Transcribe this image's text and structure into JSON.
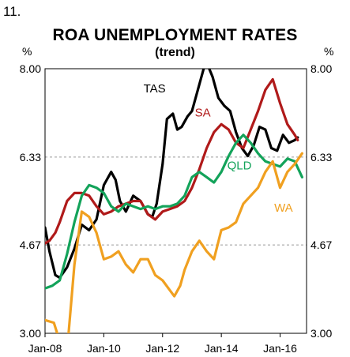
{
  "figure_number": "11.",
  "chart_data": {
    "type": "line",
    "title": "ROA UNEMPLOYMENT RATES",
    "subtitle": "(trend)",
    "y_unit_left": "%",
    "y_unit_right": "%",
    "ylim": [
      3.0,
      8.0
    ],
    "yticks": [
      "8.00",
      "6.33",
      "4.67",
      "3.00"
    ],
    "ytick_values": [
      8.0,
      6.33,
      4.67,
      3.0
    ],
    "xlim": [
      2008.0,
      2016.9
    ],
    "xticks": [
      "Jan-08",
      "Jan-10",
      "Jan-12",
      "Jan-14",
      "Jan-16"
    ],
    "xtick_values": [
      2008,
      2010,
      2012,
      2014,
      2016
    ],
    "grid": "horizontal dashed",
    "series": [
      {
        "name": "TAS",
        "color": "#000000",
        "x": [
          2008.0,
          2008.15,
          2008.35,
          2008.5,
          2008.75,
          2009.0,
          2009.25,
          2009.5,
          2009.75,
          2010.0,
          2010.25,
          2010.4,
          2010.55,
          2010.75,
          2011.0,
          2011.25,
          2011.5,
          2011.65,
          2011.8,
          2012.0,
          2012.15,
          2012.35,
          2012.5,
          2012.65,
          2012.85,
          2013.0,
          2013.2,
          2013.4,
          2013.5,
          2013.55,
          2013.7,
          2013.9,
          2014.1,
          2014.3,
          2014.5,
          2014.7,
          2014.9,
          2015.1,
          2015.3,
          2015.5,
          2015.7,
          2015.9,
          2016.1,
          2016.3,
          2016.5,
          2016.6
        ],
        "y": [
          5.0,
          4.55,
          4.1,
          4.05,
          4.25,
          4.6,
          5.05,
          4.95,
          5.15,
          5.8,
          6.05,
          5.9,
          5.5,
          5.3,
          5.6,
          5.5,
          5.25,
          5.2,
          5.45,
          6.2,
          7.05,
          7.15,
          6.85,
          6.9,
          7.1,
          7.2,
          7.6,
          8.0,
          8.05,
          8.05,
          7.85,
          7.45,
          7.3,
          7.2,
          6.8,
          6.5,
          6.35,
          6.55,
          6.9,
          6.85,
          6.5,
          6.45,
          6.75,
          6.6,
          6.65,
          6.7
        ]
      },
      {
        "name": "SA",
        "color": "#b01a1a",
        "x": [
          2008.0,
          2008.15,
          2008.35,
          2008.5,
          2008.75,
          2009.0,
          2009.25,
          2009.5,
          2009.75,
          2010.0,
          2010.25,
          2010.5,
          2010.75,
          2011.0,
          2011.25,
          2011.5,
          2011.75,
          2012.0,
          2012.25,
          2012.5,
          2012.75,
          2013.0,
          2013.25,
          2013.5,
          2013.75,
          2014.0,
          2014.25,
          2014.5,
          2014.75,
          2015.0,
          2015.25,
          2015.5,
          2015.75,
          2016.0,
          2016.25,
          2016.5,
          2016.6
        ],
        "y": [
          4.7,
          4.75,
          4.9,
          5.1,
          5.5,
          5.65,
          5.65,
          5.6,
          5.4,
          5.25,
          5.3,
          5.4,
          5.45,
          5.5,
          5.5,
          5.25,
          5.15,
          5.3,
          5.35,
          5.4,
          5.5,
          5.75,
          6.1,
          6.5,
          6.8,
          6.95,
          6.85,
          6.6,
          6.5,
          6.85,
          7.2,
          7.6,
          7.8,
          7.35,
          6.95,
          6.75,
          6.65
        ]
      },
      {
        "name": "QLD",
        "color": "#13a35a",
        "x": [
          2008.0,
          2008.25,
          2008.5,
          2008.75,
          2009.0,
          2009.25,
          2009.5,
          2009.75,
          2010.0,
          2010.25,
          2010.5,
          2010.75,
          2011.0,
          2011.25,
          2011.5,
          2011.75,
          2012.0,
          2012.25,
          2012.5,
          2012.75,
          2013.0,
          2013.25,
          2013.5,
          2013.75,
          2014.0,
          2014.25,
          2014.5,
          2014.75,
          2015.0,
          2015.25,
          2015.5,
          2015.75,
          2016.0,
          2016.25,
          2016.5,
          2016.75
        ],
        "y": [
          3.85,
          3.9,
          4.0,
          4.5,
          5.1,
          5.6,
          5.8,
          5.75,
          5.65,
          5.4,
          5.3,
          5.45,
          5.4,
          5.35,
          5.4,
          5.35,
          5.4,
          5.4,
          5.45,
          5.6,
          5.95,
          6.05,
          5.95,
          5.85,
          6.05,
          6.35,
          6.6,
          6.75,
          6.6,
          6.4,
          6.25,
          6.2,
          6.15,
          6.3,
          6.25,
          5.95
        ]
      },
      {
        "name": "WA",
        "color": "#f0a020",
        "x": [
          2008.0,
          2008.3,
          2008.5,
          2008.7,
          2008.8,
          2009.0,
          2009.25,
          2009.5,
          2009.75,
          2010.0,
          2010.25,
          2010.5,
          2010.75,
          2011.0,
          2011.25,
          2011.5,
          2011.75,
          2012.0,
          2012.2,
          2012.4,
          2012.6,
          2012.75,
          2013.0,
          2013.25,
          2013.5,
          2013.75,
          2014.0,
          2014.25,
          2014.5,
          2014.75,
          2015.0,
          2015.25,
          2015.5,
          2015.75,
          2016.0,
          2016.25,
          2016.5,
          2016.75
        ],
        "y": [
          3.25,
          3.2,
          2.85,
          2.75,
          3.0,
          4.3,
          5.3,
          5.2,
          4.9,
          4.4,
          4.45,
          4.55,
          4.3,
          4.15,
          4.4,
          4.4,
          4.1,
          4.0,
          3.85,
          3.7,
          3.9,
          4.2,
          4.55,
          4.75,
          4.55,
          4.4,
          4.95,
          5.0,
          5.1,
          5.45,
          5.6,
          5.75,
          6.05,
          6.25,
          5.75,
          6.05,
          6.2,
          6.4
        ]
      }
    ],
    "labels": [
      {
        "text": "TAS",
        "series": "TAS"
      },
      {
        "text": "SA",
        "series": "SA"
      },
      {
        "text": "QLD",
        "series": "QLD"
      },
      {
        "text": "WA",
        "series": "WA"
      }
    ]
  }
}
